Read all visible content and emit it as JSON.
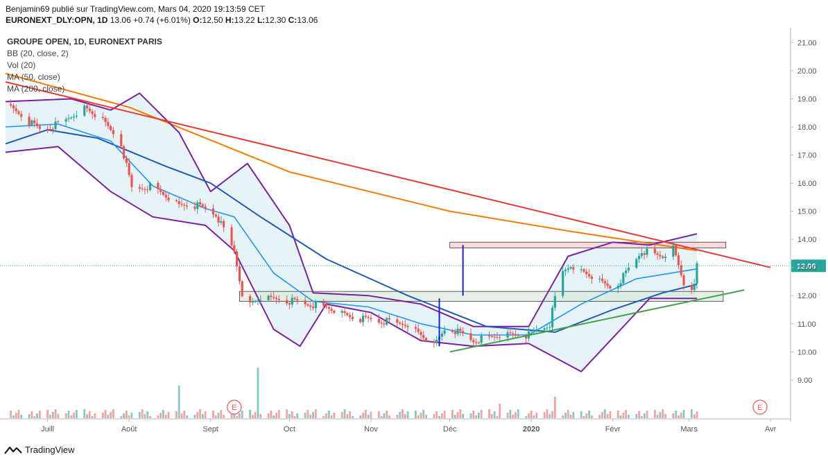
{
  "header": {
    "author_line": "Benjamin69 publié sur TradingView.com, Mars 04, 2020 19:13:59 CET",
    "symbol": "EURONEXT_DLY:OPN, 1D",
    "last": "13.06",
    "change": "+0.74 (+6.01%)",
    "o_label": "O:",
    "o": "12.50",
    "h_label": "H:",
    "h": "13.22",
    "l_label": "L:",
    "l": "12.30",
    "c_label": "C:",
    "c": "13.06"
  },
  "legend": {
    "title": "GROUPE OPEN, 1D, EURONEXT PARIS",
    "bb": "BB (20, close, 2)",
    "vol": "Vol (20)",
    "ma50": "MA (50, close)",
    "ma200": "MA (200, close)"
  },
  "footer": {
    "brand": "TradingView"
  },
  "colors": {
    "up": "#26a69a",
    "down": "#ef5350",
    "bb": "#7b1fa2",
    "bb_fill": "#e3f2f5",
    "ma50": "#1e5bb8",
    "ma20": "#2196f3",
    "ma200": "#f57c00",
    "resistance": "#e53935",
    "support": "#43a047",
    "zone_top": "#ffcdd2",
    "zone_mid": "#d7ead8"
  },
  "chart_data": {
    "type": "candlestick",
    "y_axis": {
      "ticks": [
        9,
        10,
        11,
        12,
        13,
        14,
        15,
        16,
        17,
        18,
        19,
        20,
        21
      ],
      "ylim": [
        8.4,
        21.2
      ],
      "last_price_label": "13.06"
    },
    "x_axis": {
      "labels": [
        "Juill",
        "Août",
        "Sept",
        "Oct",
        "Nov",
        "Déc",
        "2020",
        "Févr",
        "Mars",
        "Avr"
      ]
    },
    "event_markers": [
      "E",
      "E"
    ],
    "price_anchors": [
      [
        "2019-06-18",
        18.6
      ],
      [
        "2019-06-28",
        17.9
      ],
      [
        "2019-07-05",
        18.1
      ],
      [
        "2019-07-15",
        18.7
      ],
      [
        "2019-07-22",
        18.2
      ],
      [
        "2019-07-29",
        17.4
      ],
      [
        "2019-08-02",
        15.8
      ],
      [
        "2019-08-10",
        15.9
      ],
      [
        "2019-08-20",
        15.2
      ],
      [
        "2019-08-27",
        15.2
      ],
      [
        "2019-09-03",
        14.9
      ],
      [
        "2019-09-10",
        13.6
      ],
      [
        "2019-09-14",
        11.6
      ],
      [
        "2019-09-20",
        11.9
      ],
      [
        "2019-10-02",
        11.8
      ],
      [
        "2019-10-15",
        11.6
      ],
      [
        "2019-10-25",
        11.2
      ],
      [
        "2019-11-05",
        11.1
      ],
      [
        "2019-11-15",
        11.0
      ],
      [
        "2019-11-25",
        10.2
      ],
      [
        "2019-11-30",
        10.9
      ],
      [
        "2019-12-10",
        10.4
      ],
      [
        "2019-12-20",
        10.6
      ],
      [
        "2019-12-31",
        10.6
      ],
      [
        "2020-01-08",
        11.0
      ],
      [
        "2020-01-12",
        12.8
      ],
      [
        "2020-01-16",
        13.1
      ],
      [
        "2020-01-25",
        12.6
      ],
      [
        "2020-02-01",
        12.2
      ],
      [
        "2020-02-06",
        12.8
      ],
      [
        "2020-02-12",
        13.6
      ],
      [
        "2020-02-20",
        13.4
      ],
      [
        "2020-02-24",
        13.7
      ],
      [
        "2020-02-28",
        12.4
      ],
      [
        "2020-03-03",
        12.3
      ],
      [
        "2020-03-04",
        13.06
      ]
    ],
    "series": [
      {
        "name": "MA (200, close)",
        "points": [
          [
            "2019-06-15",
            19.9
          ],
          [
            "2019-08-01",
            18.7
          ],
          [
            "2019-10-01",
            16.4
          ],
          [
            "2019-12-01",
            15.0
          ],
          [
            "2020-01-15",
            14.3
          ],
          [
            "2020-03-04",
            13.6
          ]
        ]
      },
      {
        "name": "MA (50, close)",
        "points": [
          [
            "2019-06-15",
            17.4
          ],
          [
            "2019-07-01",
            17.9
          ],
          [
            "2019-07-20",
            17.6
          ],
          [
            "2019-08-15",
            16.6
          ],
          [
            "2019-09-01",
            16.0
          ],
          [
            "2019-09-20",
            14.8
          ],
          [
            "2019-10-15",
            13.3
          ],
          [
            "2019-11-15",
            12.0
          ],
          [
            "2019-12-15",
            10.9
          ],
          [
            "2020-01-10",
            10.7
          ],
          [
            "2020-02-01",
            11.5
          ],
          [
            "2020-02-20",
            12.1
          ],
          [
            "2020-03-04",
            12.4
          ]
        ]
      },
      {
        "name": "BB basis",
        "points": [
          [
            "2019-06-15",
            18.0
          ],
          [
            "2019-07-05",
            18.1
          ],
          [
            "2019-07-25",
            17.5
          ],
          [
            "2019-08-10",
            15.9
          ],
          [
            "2019-08-30",
            15.1
          ],
          [
            "2019-09-10",
            14.8
          ],
          [
            "2019-09-25",
            12.8
          ],
          [
            "2019-10-10",
            11.8
          ],
          [
            "2019-10-31",
            11.6
          ],
          [
            "2019-11-20",
            11.0
          ],
          [
            "2019-12-10",
            10.6
          ],
          [
            "2019-12-31",
            10.6
          ],
          [
            "2020-01-20",
            11.7
          ],
          [
            "2020-02-10",
            12.6
          ],
          [
            "2020-03-04",
            12.95
          ]
        ]
      },
      {
        "name": "BB upper",
        "points": [
          [
            "2019-06-15",
            18.9
          ],
          [
            "2019-07-10",
            19.0
          ],
          [
            "2019-07-25",
            18.6
          ],
          [
            "2019-08-05",
            19.2
          ],
          [
            "2019-08-20",
            17.8
          ],
          [
            "2019-09-01",
            15.7
          ],
          [
            "2019-09-15",
            16.7
          ],
          [
            "2019-10-01",
            14.5
          ],
          [
            "2019-10-10",
            12.1
          ],
          [
            "2019-10-31",
            12.0
          ],
          [
            "2019-11-20",
            11.7
          ],
          [
            "2019-12-10",
            10.9
          ],
          [
            "2019-12-31",
            10.9
          ],
          [
            "2020-01-15",
            13.4
          ],
          [
            "2020-02-01",
            13.9
          ],
          [
            "2020-02-15",
            13.8
          ],
          [
            "2020-03-04",
            14.2
          ]
        ]
      },
      {
        "name": "BB lower",
        "points": [
          [
            "2019-06-15",
            17.1
          ],
          [
            "2019-07-05",
            17.3
          ],
          [
            "2019-07-25",
            15.7
          ],
          [
            "2019-08-10",
            14.8
          ],
          [
            "2019-08-30",
            14.5
          ],
          [
            "2019-09-10",
            13.6
          ],
          [
            "2019-09-25",
            10.8
          ],
          [
            "2019-10-05",
            10.2
          ],
          [
            "2019-10-15",
            11.7
          ],
          [
            "2019-11-01",
            11.4
          ],
          [
            "2019-11-20",
            10.4
          ],
          [
            "2019-12-10",
            10.2
          ],
          [
            "2019-12-31",
            10.3
          ],
          [
            "2020-01-20",
            9.3
          ],
          [
            "2020-02-01",
            10.5
          ],
          [
            "2020-02-15",
            11.9
          ],
          [
            "2020-03-04",
            11.9
          ]
        ]
      },
      {
        "name": "MA (20, close)",
        "points": [
          [
            "2019-06-15",
            18.0
          ],
          [
            "2019-07-05",
            18.1
          ],
          [
            "2019-07-25",
            17.5
          ],
          [
            "2019-08-10",
            15.9
          ],
          [
            "2019-08-30",
            15.1
          ],
          [
            "2019-09-10",
            14.8
          ],
          [
            "2019-09-25",
            12.8
          ],
          [
            "2019-10-10",
            11.8
          ],
          [
            "2019-10-31",
            11.6
          ],
          [
            "2019-11-20",
            11.0
          ],
          [
            "2019-12-10",
            10.6
          ],
          [
            "2019-12-31",
            10.6
          ],
          [
            "2020-01-20",
            11.7
          ],
          [
            "2020-02-10",
            12.6
          ],
          [
            "2020-03-04",
            12.95
          ]
        ]
      }
    ],
    "trendlines": [
      {
        "name": "resistance",
        "points": [
          [
            "2019-06-15",
            19.6
          ],
          [
            "2020-04-01",
            13.0
          ]
        ]
      },
      {
        "name": "support",
        "points": [
          [
            "2019-12-01",
            10.0
          ],
          [
            "2020-03-22",
            12.2
          ]
        ]
      }
    ],
    "zones": [
      {
        "name": "resistance-zone",
        "from": "2019-12-01",
        "to": "2020-03-15",
        "low": 13.7,
        "high": 13.9
      },
      {
        "name": "support-zone",
        "from": "2019-09-12",
        "to": "2020-03-14",
        "low": 11.8,
        "high": 12.15
      }
    ],
    "verticals": [
      {
        "date": "2019-11-27",
        "from": 10.2,
        "to": 11.9
      },
      {
        "date": "2019-12-06",
        "from": 12.0,
        "to": 13.8
      }
    ]
  }
}
